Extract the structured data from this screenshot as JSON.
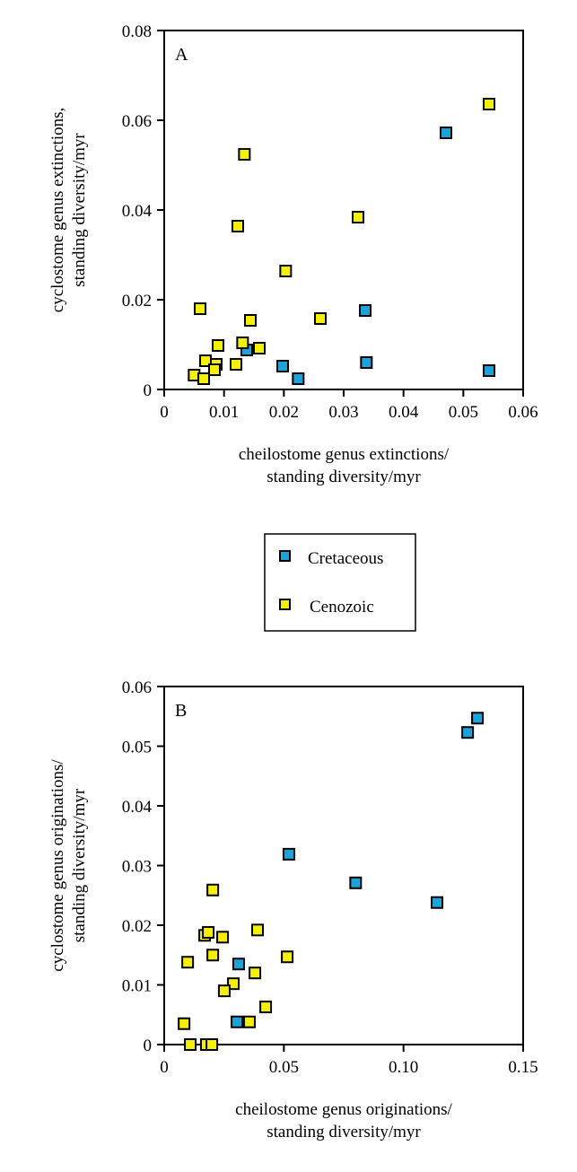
{
  "chart_data": [
    {
      "type": "scatter",
      "panel_label": "A",
      "xlabel": [
        "cheilostome genus extinctions/",
        "standing diversity/myr"
      ],
      "ylabel": [
        "cyclostome genus extinctions,",
        "standing diversity/myr"
      ],
      "xlim": [
        0,
        0.06
      ],
      "ylim": [
        0,
        0.08
      ],
      "xticks": [
        0,
        0.01,
        0.02,
        0.03,
        0.04,
        0.05,
        0.06
      ],
      "xtick_labels": [
        "0",
        "0.01",
        "0.02",
        "0.03",
        "0.04",
        "0.05",
        "0.06"
      ],
      "yticks": [
        0,
        0.02,
        0.04,
        0.06,
        0.08
      ],
      "ytick_labels": [
        "0",
        "0.02",
        "0.04",
        "0.06",
        "0.08"
      ],
      "grid": false,
      "series": [
        {
          "name": "Cretaceous",
          "color": "#1ca3dc",
          "points": [
            [
              0.0471,
              0.0572
            ],
            [
              0.0336,
              0.0176
            ],
            [
              0.0338,
              0.006
            ],
            [
              0.0543,
              0.0042
            ],
            [
              0.0198,
              0.0052
            ],
            [
              0.0224,
              0.0024
            ],
            [
              0.0138,
              0.0088
            ]
          ]
        },
        {
          "name": "Cenozoic",
          "color": "#f5ef00",
          "points": [
            [
              0.0543,
              0.0636
            ],
            [
              0.0134,
              0.0524
            ],
            [
              0.0123,
              0.0364
            ],
            [
              0.0324,
              0.0384
            ],
            [
              0.0203,
              0.0264
            ],
            [
              0.006,
              0.018
            ],
            [
              0.0144,
              0.0154
            ],
            [
              0.0261,
              0.0158
            ],
            [
              0.0131,
              0.0104
            ],
            [
              0.0159,
              0.0092
            ],
            [
              0.009,
              0.0098
            ],
            [
              0.012,
              0.0056
            ],
            [
              0.0069,
              0.0064
            ],
            [
              0.0087,
              0.0056
            ],
            [
              0.0084,
              0.0044
            ],
            [
              0.005,
              0.0032
            ],
            [
              0.0066,
              0.0024
            ]
          ]
        }
      ]
    },
    {
      "type": "scatter",
      "panel_label": "B",
      "xlabel": [
        "cheilostome genus originations/",
        "standing diversity/myr"
      ],
      "ylabel": [
        "cyclostome genus originations/",
        "standing diversity/myr"
      ],
      "xlim": [
        0,
        0.15
      ],
      "ylim": [
        0,
        0.06
      ],
      "xticks": [
        0,
        0.05,
        0.1,
        0.15
      ],
      "xtick_labels": [
        "0",
        "0.05",
        "0.10",
        "0.15"
      ],
      "yticks": [
        0,
        0.01,
        0.02,
        0.03,
        0.04,
        0.05,
        0.06
      ],
      "ytick_labels": [
        "0",
        "0.01",
        "0.02",
        "0.03",
        "0.04",
        "0.05",
        "0.06"
      ],
      "grid": false,
      "series": [
        {
          "name": "Cretaceous",
          "color": "#1ca3dc",
          "points": [
            [
              0.1309,
              0.0547
            ],
            [
              0.1268,
              0.0523
            ],
            [
              0.0521,
              0.0319
            ],
            [
              0.08,
              0.0271
            ],
            [
              0.114,
              0.0238
            ],
            [
              0.0311,
              0.0135
            ],
            [
              0.0304,
              0.0038
            ]
          ]
        },
        {
          "name": "Cenozoic",
          "color": "#f5ef00",
          "points": [
            [
              0.0203,
              0.0259
            ],
            [
              0.0169,
              0.0183
            ],
            [
              0.0184,
              0.0188
            ],
            [
              0.0244,
              0.018
            ],
            [
              0.039,
              0.0192
            ],
            [
              0.0203,
              0.015
            ],
            [
              0.0098,
              0.0138
            ],
            [
              0.0514,
              0.0147
            ],
            [
              0.0379,
              0.012
            ],
            [
              0.0289,
              0.0102
            ],
            [
              0.0251,
              0.009
            ],
            [
              0.0424,
              0.0063
            ],
            [
              0.0356,
              0.0038
            ],
            [
              0.0083,
              0.0035
            ],
            [
              0.0109,
              0
            ],
            [
              0.0176,
              0
            ],
            [
              0.0199,
              0
            ]
          ]
        }
      ]
    }
  ],
  "legend": {
    "placement": "center, between panels",
    "entries": [
      {
        "label": "Cretaceous",
        "color": "#1ca3dc"
      },
      {
        "label": "Cenozoic",
        "color": "#f5ef00"
      }
    ]
  }
}
